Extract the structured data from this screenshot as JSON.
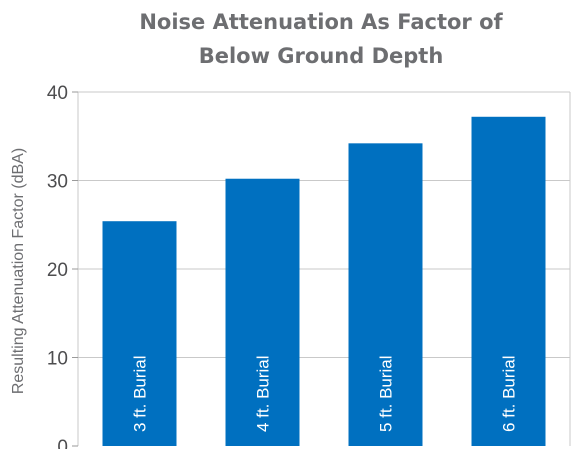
{
  "chart_data": {
    "type": "bar",
    "title_lines": [
      "Noise Attenuation As Factor of",
      "Below Ground Depth"
    ],
    "ylabel": "Resulting Attenuation Factor (dBA)",
    "xlabel": "",
    "categories": [
      "3 ft. Burial",
      "4 ft. Burial",
      "5 ft. Burial",
      "6 ft. Burial"
    ],
    "values": [
      25.4,
      30.2,
      34.2,
      37.2
    ],
    "ylim": [
      0,
      40
    ],
    "yticks": [
      0,
      10,
      20,
      30,
      40
    ],
    "grid": true,
    "bar_color": "#0070c0",
    "legend": "none"
  }
}
